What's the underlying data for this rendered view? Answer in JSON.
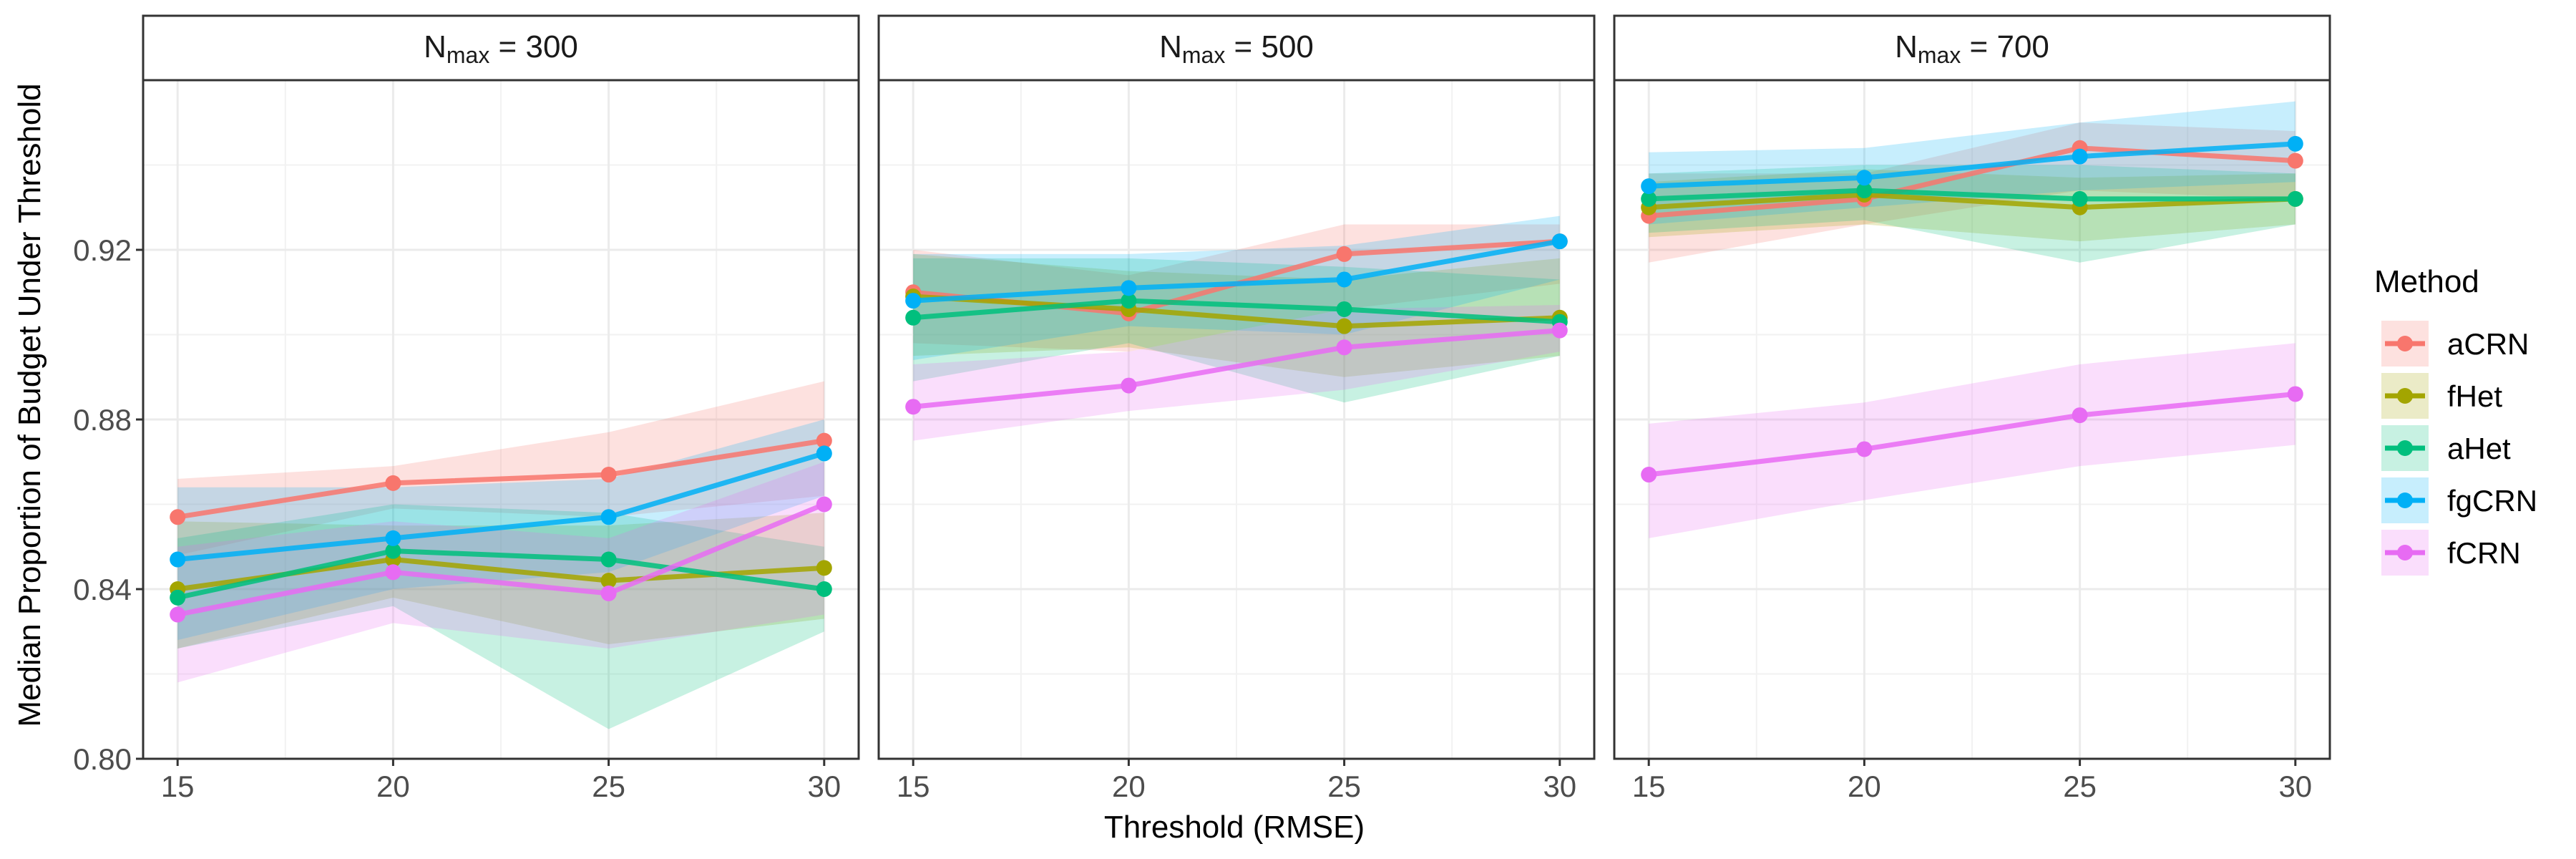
{
  "chart_data": {
    "type": "line",
    "ylabel": "Median Proportion of Budget Under Threshold",
    "xlabel": "Threshold (RMSE)",
    "x": [
      15,
      20,
      25,
      30
    ],
    "xlim": [
      14.2,
      30.8
    ],
    "ylim": [
      0.8,
      0.96
    ],
    "yticks": [
      0.8,
      0.84,
      0.88,
      0.92
    ],
    "ytick_labels": [
      "0.80",
      "0.84",
      "0.88",
      "0.92"
    ],
    "xtick_labels": [
      "15",
      "20",
      "25",
      "30"
    ],
    "legend": {
      "title": "Method",
      "position": "right"
    },
    "series_colors": {
      "aCRN": "#F8766D",
      "fHet": "#A3A500",
      "aHet": "#00BF7D",
      "fgCRN": "#00B0F6",
      "fCRN": "#E76BF3"
    },
    "panels": [
      {
        "strip": {
          "base": "N",
          "sub": "max",
          "rest": " = 300"
        },
        "series": [
          {
            "name": "aCRN",
            "values": [
              0.857,
              0.865,
              0.867,
              0.875
            ],
            "lower": [
              0.848,
              0.859,
              0.857,
              0.862
            ],
            "upper": [
              0.866,
              0.869,
              0.877,
              0.889
            ]
          },
          {
            "name": "fHet",
            "values": [
              0.84,
              0.847,
              0.842,
              0.845
            ],
            "lower": [
              0.826,
              0.838,
              0.827,
              0.833
            ],
            "upper": [
              0.856,
              0.855,
              0.855,
              0.858
            ]
          },
          {
            "name": "aHet",
            "values": [
              0.838,
              0.849,
              0.847,
              0.84
            ],
            "lower": [
              0.826,
              0.836,
              0.807,
              0.83
            ],
            "upper": [
              0.852,
              0.86,
              0.858,
              0.85
            ]
          },
          {
            "name": "fgCRN",
            "values": [
              0.847,
              0.852,
              0.857,
              0.872
            ],
            "lower": [
              0.828,
              0.84,
              0.844,
              0.862
            ],
            "upper": [
              0.864,
              0.864,
              0.866,
              0.88
            ]
          },
          {
            "name": "fCRN",
            "values": [
              0.834,
              0.844,
              0.839,
              0.86
            ],
            "lower": [
              0.818,
              0.832,
              0.826,
              0.834
            ],
            "upper": [
              0.85,
              0.856,
              0.852,
              0.87
            ]
          }
        ]
      },
      {
        "strip": {
          "base": "N",
          "sub": "max",
          "rest": " = 500"
        },
        "series": [
          {
            "name": "aCRN",
            "values": [
              0.91,
              0.905,
              0.919,
              0.922
            ],
            "lower": [
              0.898,
              0.896,
              0.906,
              0.912
            ],
            "upper": [
              0.92,
              0.914,
              0.926,
              0.926
            ]
          },
          {
            "name": "fHet",
            "values": [
              0.909,
              0.906,
              0.902,
              0.904
            ],
            "lower": [
              0.895,
              0.897,
              0.89,
              0.895
            ],
            "upper": [
              0.919,
              0.915,
              0.913,
              0.918
            ]
          },
          {
            "name": "aHet",
            "values": [
              0.904,
              0.908,
              0.906,
              0.903
            ],
            "lower": [
              0.889,
              0.898,
              0.884,
              0.895
            ],
            "upper": [
              0.918,
              0.918,
              0.916,
              0.913
            ]
          },
          {
            "name": "fgCRN",
            "values": [
              0.908,
              0.911,
              0.913,
              0.922
            ],
            "lower": [
              0.894,
              0.902,
              0.9,
              0.913
            ],
            "upper": [
              0.919,
              0.919,
              0.921,
              0.928
            ]
          },
          {
            "name": "fCRN",
            "values": [
              0.883,
              0.888,
              0.897,
              0.901
            ],
            "lower": [
              0.875,
              0.882,
              0.887,
              0.896
            ],
            "upper": [
              0.893,
              0.896,
              0.906,
              0.907
            ]
          }
        ]
      },
      {
        "strip": {
          "base": "N",
          "sub": "max",
          "rest": " = 700"
        },
        "series": [
          {
            "name": "aCRN",
            "values": [
              0.928,
              0.932,
              0.944,
              0.941
            ],
            "lower": [
              0.917,
              0.926,
              0.934,
              0.932
            ],
            "upper": [
              0.938,
              0.938,
              0.95,
              0.948
            ]
          },
          {
            "name": "fHet",
            "values": [
              0.93,
              0.933,
              0.93,
              0.932
            ],
            "lower": [
              0.923,
              0.926,
              0.922,
              0.926
            ],
            "upper": [
              0.936,
              0.939,
              0.937,
              0.938
            ]
          },
          {
            "name": "aHet",
            "values": [
              0.932,
              0.934,
              0.932,
              0.932
            ],
            "lower": [
              0.924,
              0.927,
              0.917,
              0.926
            ],
            "upper": [
              0.938,
              0.94,
              0.94,
              0.938
            ]
          },
          {
            "name": "fgCRN",
            "values": [
              0.935,
              0.937,
              0.942,
              0.945
            ],
            "lower": [
              0.926,
              0.93,
              0.934,
              0.936
            ],
            "upper": [
              0.943,
              0.944,
              0.95,
              0.955
            ]
          },
          {
            "name": "fCRN",
            "values": [
              0.867,
              0.873,
              0.881,
              0.886
            ],
            "lower": [
              0.852,
              0.861,
              0.869,
              0.874
            ],
            "upper": [
              0.879,
              0.884,
              0.893,
              0.898
            ]
          }
        ]
      }
    ]
  }
}
